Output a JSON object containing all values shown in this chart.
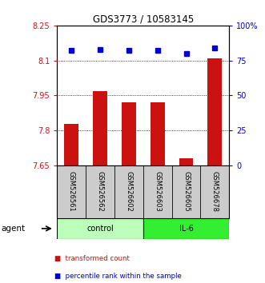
{
  "title": "GDS3773 / 10583145",
  "samples": [
    "GSM526561",
    "GSM526562",
    "GSM526602",
    "GSM526603",
    "GSM526605",
    "GSM526678"
  ],
  "bar_values": [
    7.83,
    7.97,
    7.92,
    7.92,
    7.68,
    8.11
  ],
  "percentile_values": [
    82,
    83,
    82,
    82,
    80,
    84
  ],
  "bar_color": "#cc1111",
  "percentile_color": "#0000cc",
  "ylim_left": [
    7.65,
    8.25
  ],
  "ylim_right": [
    0,
    100
  ],
  "yticks_left": [
    7.65,
    7.8,
    7.95,
    8.1,
    8.25
  ],
  "ytick_labels_left": [
    "7.65",
    "7.8",
    "7.95",
    "8.1",
    "8.25"
  ],
  "yticks_right": [
    0,
    25,
    50,
    75,
    100
  ],
  "ytick_labels_right": [
    "0",
    "25",
    "50",
    "75",
    "100%"
  ],
  "groups": [
    {
      "label": "control",
      "indices": [
        0,
        1,
        2
      ],
      "color": "#bbffbb"
    },
    {
      "label": "IL-6",
      "indices": [
        3,
        4,
        5
      ],
      "color": "#33ee33"
    }
  ],
  "agent_label": "agent",
  "legend_items": [
    {
      "label": "transformed count",
      "color": "#cc1111"
    },
    {
      "label": "percentile rank within the sample",
      "color": "#0000cc"
    }
  ],
  "bar_width": 0.5,
  "background_color": "#ffffff",
  "axis_label_color_left": "#cc1111",
  "axis_label_color_right": "#0000cc",
  "sample_bg": "#cccccc",
  "title_fontsize": 8.5
}
